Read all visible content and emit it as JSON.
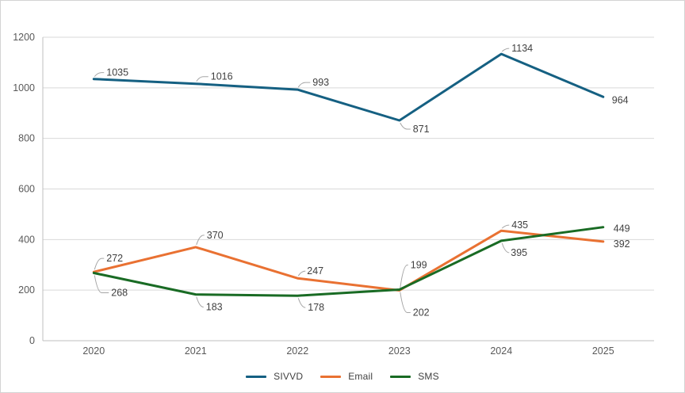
{
  "chart_data": {
    "type": "line",
    "title": "",
    "xlabel": "",
    "ylabel": "",
    "x": [
      "2020",
      "2021",
      "2022",
      "2023",
      "2024",
      "2025"
    ],
    "series": [
      {
        "name": "SIVVD",
        "color": "#156082",
        "values": [
          1035,
          1016,
          993,
          871,
          1134,
          964
        ],
        "label_offsets": [
          [
            16,
            -8
          ],
          [
            19,
            -9
          ],
          [
            19,
            -9
          ],
          [
            17,
            11
          ],
          [
            13,
            -7
          ],
          [
            11,
            4
          ]
        ],
        "label_leaders": [
          true,
          true,
          true,
          true,
          true,
          false
        ]
      },
      {
        "name": "Email",
        "color": "#E97132",
        "values": [
          272,
          370,
          247,
          199,
          435,
          392
        ],
        "label_offsets": [
          [
            16,
            -17
          ],
          [
            14,
            -15
          ],
          [
            12,
            -9
          ],
          [
            14,
            -32
          ],
          [
            13,
            -7
          ],
          [
            13,
            3
          ]
        ],
        "label_leaders": [
          true,
          true,
          true,
          true,
          true,
          false
        ]
      },
      {
        "name": "SMS",
        "color": "#196B24",
        "values": [
          268,
          183,
          178,
          202,
          395,
          449
        ],
        "label_offsets": [
          [
            22,
            25
          ],
          [
            13,
            16
          ],
          [
            13,
            15
          ],
          [
            17,
            29
          ],
          [
            12,
            15
          ],
          [
            13,
            2
          ]
        ],
        "label_leaders": [
          true,
          true,
          true,
          true,
          true,
          false
        ]
      }
    ],
    "ylim": [
      0,
      1200
    ],
    "ytick_interval": 200,
    "yticks": [
      "0",
      "200",
      "400",
      "600",
      "800",
      "1000",
      "1200"
    ],
    "grid": true,
    "data_labels": true,
    "legend_position": "bottom",
    "palette": {
      "background": "#FFFFFF",
      "frame_border": "#D3D3D3",
      "gridline": "#D9D9D9",
      "axis_line": "#BFBFBF",
      "tick_text": "#595959",
      "data_label_text": "#404040",
      "leader_line": "#A6A6A6"
    }
  }
}
